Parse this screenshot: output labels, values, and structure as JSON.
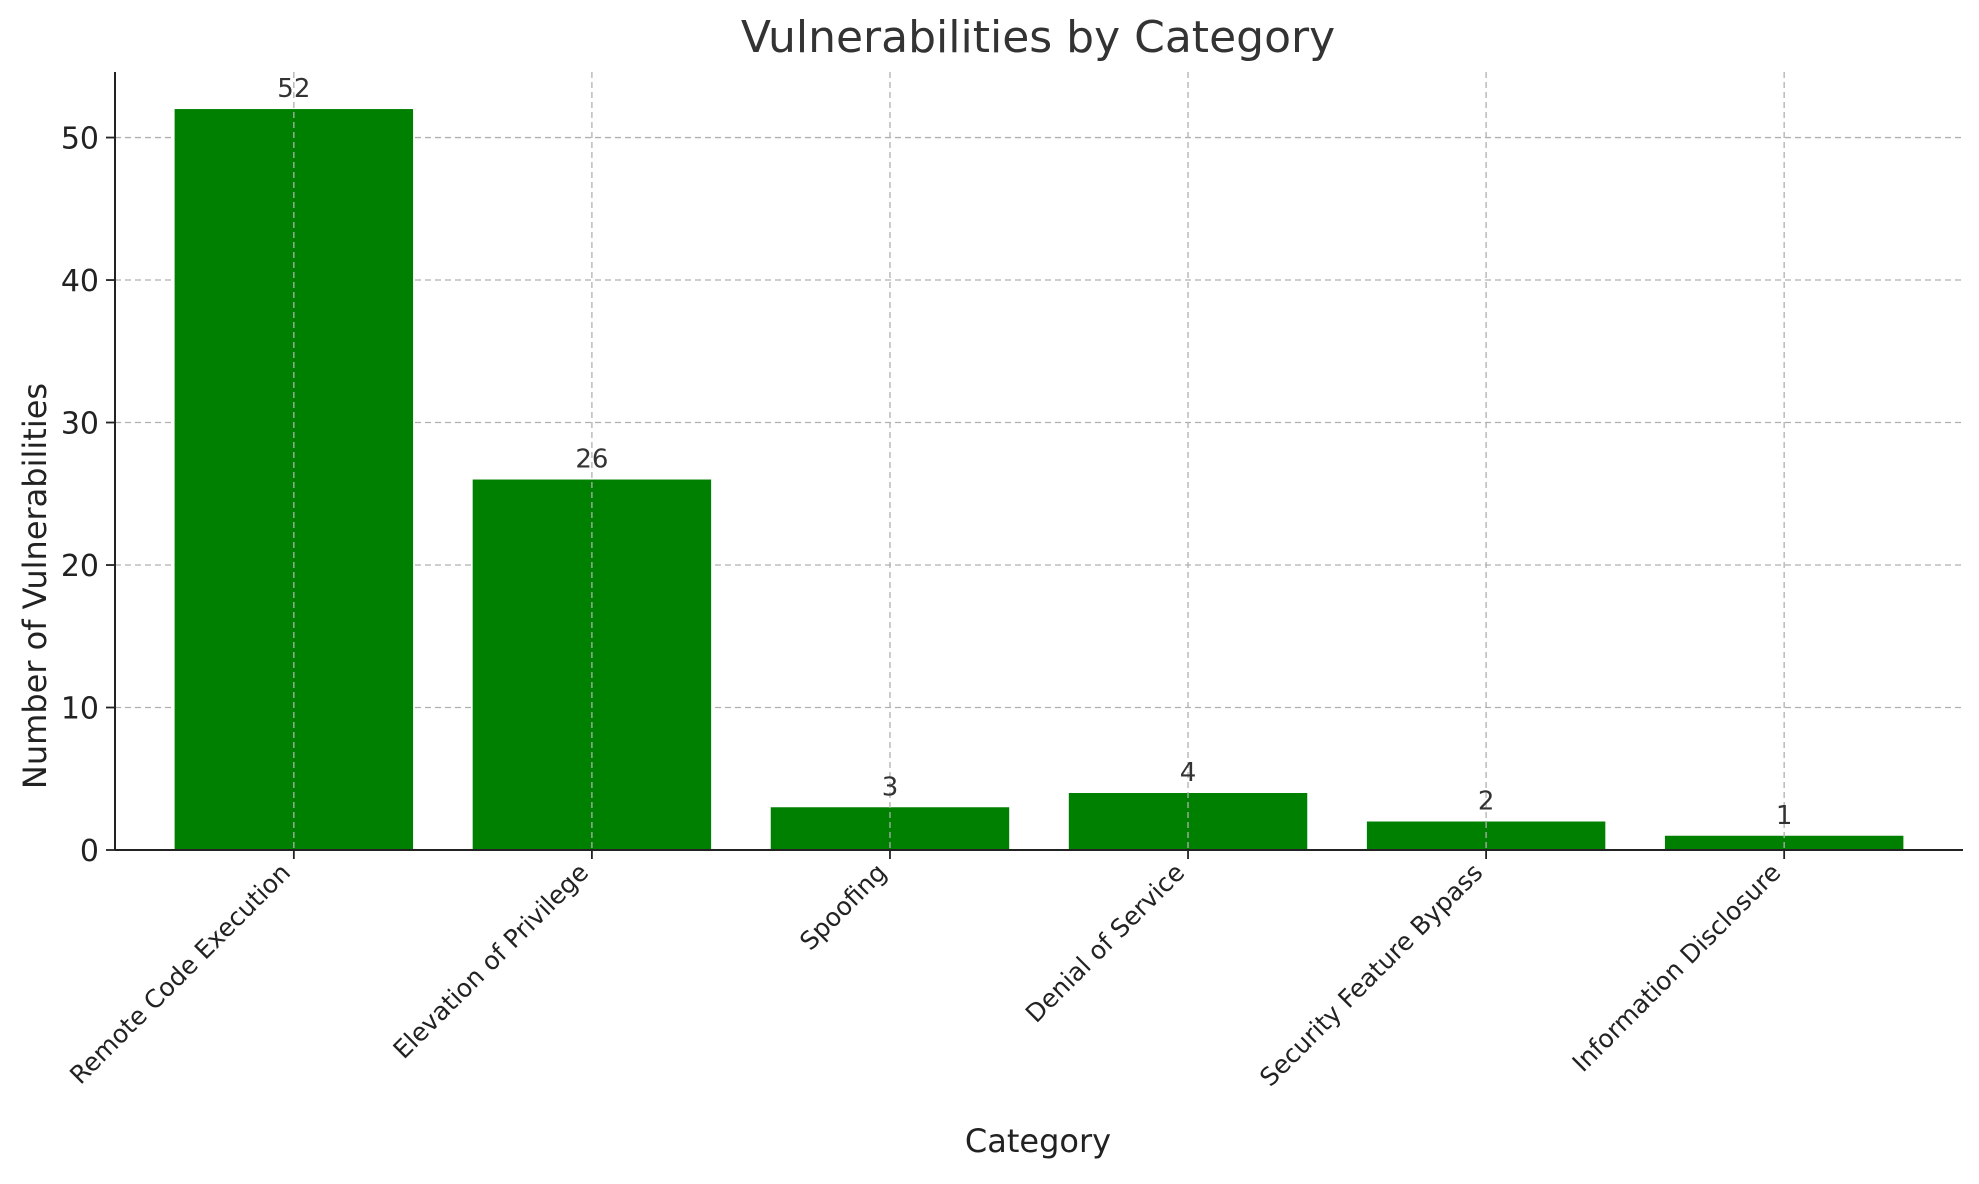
{
  "chart_data": {
    "type": "bar",
    "title": "Vulnerabilities by Category",
    "xlabel": "Category",
    "ylabel": "Number of Vulnerabilities",
    "categories": [
      "Remote Code Execution",
      "Elevation of Privilege",
      "Spoofing",
      "Denial of Service",
      "Security Feature Bypass",
      "Information Disclosure"
    ],
    "values": [
      52,
      26,
      3,
      4,
      2,
      1
    ],
    "data_labels": [
      "52",
      "26",
      "3",
      "4",
      "2",
      "1"
    ],
    "ylim": [
      0,
      54.6
    ],
    "yticks": [
      0,
      10,
      20,
      30,
      40,
      50
    ],
    "grid": true,
    "legend": "none",
    "bar_color": "#008000",
    "grid_color": "#b0b0b0"
  }
}
